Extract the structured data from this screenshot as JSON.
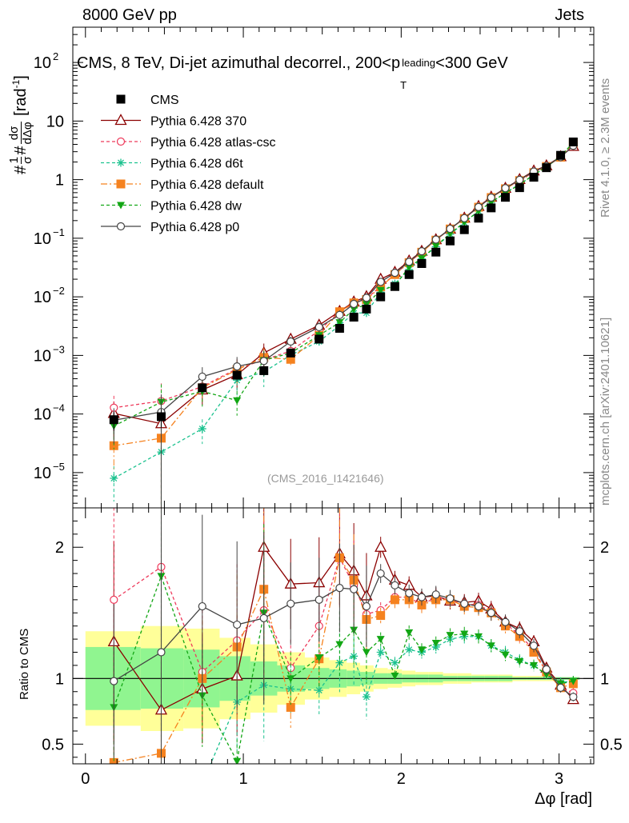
{
  "header": {
    "left": "8000 GeV pp",
    "right": "Jets",
    "side_rivet": "Rivet 4.1.0, ≥ 2.3M events",
    "side_site": "mcplots.cern.ch [arXiv:2401.10621]"
  },
  "chart_data": {
    "type": "line",
    "title": "CMS, 8 TeV, Di-jet azimuthal decorrel., 200<p_T^leading<300 GeV",
    "title_parts": {
      "main": "CMS, 8 TeV, Di-jet azimuthal decorrel., 200<p",
      "sub": "T",
      "sup": "leading",
      "tail": "<300 GeV"
    },
    "analysis_tag": "(CMS_2016_I1421646)",
    "xlabel": "Δφ [rad]",
    "ylabel_top": "1/σ dσ/dΔφ [rad⁻¹]",
    "ylabel_top_parts": {
      "hash": "#",
      "one": "1",
      "sigma": "σ",
      "dsigma": "dσ",
      "ddphi": "dΔφ",
      "unit": "[rad",
      "unit_sup": "-1",
      "unit_close": "]"
    },
    "ylabel_bottom": "Ratio to CMS",
    "xlim": [
      -0.08,
      3.22
    ],
    "ylim_top": [
      2.5e-06,
      400
    ],
    "ylim_bottom": [
      0.35,
      2.3
    ],
    "x_ticks": [
      {
        "v": 0,
        "label": "0"
      },
      {
        "v": 1,
        "label": "1"
      },
      {
        "v": 2,
        "label": "2"
      },
      {
        "v": 3,
        "label": "3"
      }
    ],
    "y_ticks_top": [
      {
        "v": 1e-05,
        "base": "10",
        "exp": "−5"
      },
      {
        "v": 0.0001,
        "base": "10",
        "exp": "−4"
      },
      {
        "v": 0.001,
        "base": "10",
        "exp": "−3"
      },
      {
        "v": 0.01,
        "base": "10",
        "exp": "−2"
      },
      {
        "v": 0.1,
        "base": "10",
        "exp": "−1"
      },
      {
        "v": 1,
        "base": "1",
        "exp": ""
      },
      {
        "v": 10,
        "base": "10",
        "exp": ""
      },
      {
        "v": 100,
        "base": "10",
        "exp": "2"
      }
    ],
    "y_ticks_bottom": [
      {
        "v": 0.5,
        "label": "0.5"
      },
      {
        "v": 1,
        "label": "1"
      },
      {
        "v": 2,
        "label": "2"
      }
    ],
    "x": [
      0.18,
      0.48,
      0.74,
      0.96,
      1.13,
      1.3,
      1.48,
      1.61,
      1.7,
      1.78,
      1.87,
      1.96,
      2.05,
      2.13,
      2.22,
      2.31,
      2.4,
      2.49,
      2.57,
      2.66,
      2.75,
      2.84,
      2.92,
      3.01,
      3.09
    ],
    "data": {
      "name": "CMS",
      "values": [
        8e-05,
        9e-05,
        0.00028,
        0.00046,
        0.00055,
        0.0011,
        0.0019,
        0.0029,
        0.0045,
        0.0062,
        0.01,
        0.015,
        0.024,
        0.037,
        0.058,
        0.09,
        0.14,
        0.22,
        0.33,
        0.5,
        0.73,
        1.1,
        1.6,
        2.6,
        4.4
      ],
      "band_inner": [
        0.24,
        0.23,
        0.22,
        0.17,
        0.13,
        0.1,
        0.08,
        0.07,
        0.06,
        0.05,
        0.04,
        0.04,
        0.03,
        0.03,
        0.03,
        0.02,
        0.02,
        0.02,
        0.02,
        0.02,
        0.01,
        0.01,
        0.01,
        0.01,
        0.01
      ],
      "band_outer": [
        0.36,
        0.4,
        0.38,
        0.31,
        0.26,
        0.2,
        0.16,
        0.14,
        0.12,
        0.1,
        0.08,
        0.07,
        0.06,
        0.05,
        0.05,
        0.04,
        0.04,
        0.03,
        0.03,
        0.03,
        0.02,
        0.02,
        0.02,
        0.01,
        0.01
      ]
    },
    "series": [
      {
        "name": "Pythia 6.428 370",
        "color": "#8b0000",
        "dash": "",
        "marker": "triangle-open",
        "ratio": [
          1.28,
          0.76,
          0.92,
          1.02,
          2.0,
          1.72,
          1.73,
          1.95,
          1.82,
          1.63,
          2.0,
          1.75,
          1.71,
          1.62,
          1.63,
          1.59,
          1.58,
          1.59,
          1.53,
          1.43,
          1.38,
          1.28,
          1.08,
          0.95,
          0.84
        ]
      },
      {
        "name": "Pythia 6.428 atlas-csc",
        "color": "#ee3a5b",
        "dash": "4,3",
        "marker": "circle-open",
        "ratio": [
          1.6,
          1.85,
          1.05,
          1.29,
          1.52,
          1.08,
          1.4,
          1.92,
          1.71,
          1.49,
          1.52,
          1.62,
          1.62,
          1.56,
          1.62,
          1.6,
          1.57,
          1.56,
          1.51,
          1.42,
          1.33,
          1.22,
          1.05,
          0.93,
          0.89
        ]
      },
      {
        "name": "Pythia 6.428 d6t",
        "color": "#1cc28f",
        "dash": "4,3",
        "marker": "star",
        "ratio": [
          0.1,
          0.25,
          0.2,
          0.82,
          0.95,
          0.92,
          0.91,
          1.12,
          1.17,
          0.86,
          1.2,
          1.12,
          1.22,
          1.2,
          1.24,
          1.3,
          1.32,
          1.32,
          1.25,
          1.2,
          1.14,
          1.1,
          1.03,
          0.97,
          0.98
        ]
      },
      {
        "name": "Pythia 6.428 default",
        "color": "#f5821f",
        "dash": "8,3,2,3",
        "marker": "square",
        "ratio": [
          0.36,
          0.43,
          1.0,
          1.24,
          1.68,
          0.78,
          1.15,
          1.92,
          1.75,
          1.45,
          1.48,
          1.6,
          1.6,
          1.56,
          1.6,
          1.6,
          1.55,
          1.54,
          1.5,
          1.4,
          1.32,
          1.2,
          1.05,
          0.93,
          0.96
        ]
      },
      {
        "name": "Pythia 6.428 dw",
        "color": "#12a614",
        "dash": "4,3",
        "marker": "triangle-down",
        "ratio": [
          0.78,
          1.78,
          0.87,
          0.37,
          1.5,
          1.0,
          1.16,
          1.26,
          1.37,
          1.2,
          1.3,
          1.02,
          1.35,
          1.22,
          1.27,
          1.33,
          1.34,
          1.32,
          1.25,
          1.18,
          1.13,
          1.1,
          1.03,
          0.96,
          0.98
        ]
      },
      {
        "name": "Pythia 6.428 p0",
        "color": "#444444",
        "dash": "",
        "marker": "circle-open",
        "ratio": [
          0.98,
          1.2,
          1.55,
          1.41,
          1.46,
          1.57,
          1.6,
          1.69,
          1.68,
          1.55,
          1.8,
          1.71,
          1.65,
          1.62,
          1.64,
          1.61,
          1.57,
          1.55,
          1.5,
          1.43,
          1.36,
          1.25,
          1.07,
          0.93,
          0.86
        ]
      }
    ]
  }
}
